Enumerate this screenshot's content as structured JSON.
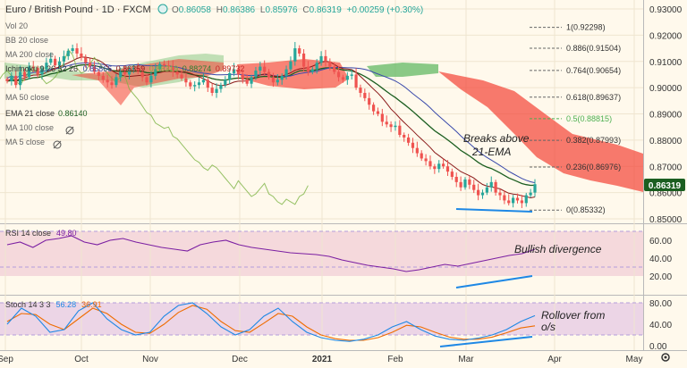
{
  "header": {
    "symbol": "Euro / British Pound",
    "interval": "1D",
    "exchange": "FXCM",
    "ohlc": [
      {
        "label": "O",
        "value": "0.86058"
      },
      {
        "label": "H",
        "value": "0.86386"
      },
      {
        "label": "L",
        "value": "0.85976"
      },
      {
        "label": "C",
        "value": "0.86319"
      }
    ],
    "change": "+0.00259 (+0.30%)"
  },
  "indicators": [
    {
      "id": "vol",
      "text": "Vol 20"
    },
    {
      "id": "bb",
      "text": "BB 20 close"
    },
    {
      "id": "ma200",
      "text": "MA 200 close"
    },
    {
      "id": "ichimoku",
      "text": "Ichimoku 9 26 52 26",
      "values": [
        "0.85866",
        "0.86359",
        "0.86319",
        "0.88274",
        "0.89732"
      ]
    },
    {
      "id": "ma50",
      "text": "MA 50 close"
    },
    {
      "id": "ema21",
      "text": "EMA 21 close",
      "values": [
        "0.86140"
      ]
    },
    {
      "id": "ma100",
      "text": "MA 100 close"
    },
    {
      "id": "ma5",
      "text": "MA 5 close"
    }
  ],
  "price_axis": {
    "ticks": [
      "0.93000",
      "0.92000",
      "0.91000",
      "0.90000",
      "0.89000",
      "0.88000",
      "0.87000",
      "0.86000",
      "0.85000"
    ],
    "current": "0.86319"
  },
  "fib_levels": [
    {
      "ratio": "1",
      "price": "0.92298"
    },
    {
      "ratio": "0.886",
      "price": "0.91504"
    },
    {
      "ratio": "0.764",
      "price": "0.90654"
    },
    {
      "ratio": "0.618",
      "price": "0.89637"
    },
    {
      "ratio": "0.5",
      "price": "0.88815"
    },
    {
      "ratio": "0.382",
      "price": "0.87993"
    },
    {
      "ratio": "0.236",
      "price": "0.86976"
    },
    {
      "ratio": "0",
      "price": "0.85332"
    }
  ],
  "annotations": {
    "ema_break": [
      "Breaks above",
      "21-EMA"
    ],
    "rsi_note": "Bullish divergence",
    "stoch_note": [
      "Rollover from",
      "o/s"
    ]
  },
  "rsi": {
    "label": "RSI 14 close",
    "value": "49.80",
    "ticks": [
      "60.00",
      "40.00",
      "20.00"
    ]
  },
  "stoch": {
    "label": "Stoch 14 3 3",
    "k": "56.28",
    "d": "36.91",
    "ticks": [
      "80.00",
      "40.00",
      "0.00"
    ]
  },
  "time_axis": {
    "labels": [
      "Sep",
      "Oct",
      "Nov",
      "Dec",
      "2021",
      "Feb",
      "Mar",
      "Apr",
      "May"
    ]
  },
  "colors": {
    "background": "#fff9ec",
    "bull": "#26a69a",
    "bear": "#ef5350",
    "cloud_bull": "#4caf50",
    "cloud_bear": "#f44336",
    "ema21": "#1b5e20",
    "kijun": "#8b1a1a",
    "tenkan": "#3949ab",
    "chikou": "#7cb342",
    "rsi_line": "#7b1fa2",
    "stoch_k": "#1e88e5",
    "stoch_d": "#ef6c00",
    "divergence_line": "#1e88e5"
  },
  "chart_data": {
    "type": "candlestick",
    "symbol": "EUR/GBP",
    "candles_close_approx": [
      0.9025,
      0.9045,
      0.901,
      0.906,
      0.904,
      0.908,
      0.9075,
      0.905,
      0.907,
      0.9095,
      0.911,
      0.9085,
      0.91,
      0.912,
      0.914,
      0.915,
      0.913,
      0.9115,
      0.9095,
      0.908,
      0.906,
      0.9045,
      0.903,
      0.902,
      0.901,
      0.904,
      0.906,
      0.905,
      0.907,
      0.9075,
      0.906,
      0.904,
      0.902,
      0.9045,
      0.907,
      0.909,
      0.9085,
      0.908,
      0.906,
      0.905,
      0.9035,
      0.902,
      0.9005,
      0.901,
      0.902,
      0.903,
      0.9,
      0.898,
      0.8995,
      0.901,
      0.903,
      0.9055,
      0.907,
      0.905,
      0.903,
      0.9015,
      0.904,
      0.9065,
      0.908,
      0.906,
      0.904,
      0.902,
      0.903,
      0.9045,
      0.907,
      0.91,
      0.915,
      0.913,
      0.908,
      0.906,
      0.907,
      0.9095,
      0.912,
      0.91,
      0.908,
      0.906,
      0.904,
      0.903,
      0.9045,
      0.905,
      0.9,
      0.898,
      0.896,
      0.8935,
      0.891,
      0.89,
      0.887,
      0.886,
      0.885,
      0.8855,
      0.882,
      0.881,
      0.879,
      0.877,
      0.875,
      0.873,
      0.872,
      0.87,
      0.869,
      0.871,
      0.87,
      0.868,
      0.866,
      0.864,
      0.862,
      0.865,
      0.863,
      0.861,
      0.859,
      0.86,
      0.862,
      0.864,
      0.86,
      0.859,
      0.857,
      0.856,
      0.858,
      0.857,
      0.856,
      0.859,
      0.86,
      0.8632
    ],
    "rsi_values_approx": [
      55,
      58,
      52,
      60,
      62,
      65,
      58,
      55,
      60,
      62,
      58,
      55,
      52,
      50,
      48,
      55,
      58,
      60,
      55,
      52,
      50,
      48,
      46,
      45,
      44,
      42,
      38,
      35,
      32,
      30,
      28,
      25,
      27,
      30,
      33,
      31,
      34,
      37,
      40,
      43,
      45,
      50
    ],
    "stoch_k_approx": [
      40,
      70,
      55,
      25,
      30,
      65,
      80,
      50,
      30,
      20,
      25,
      55,
      75,
      80,
      60,
      35,
      20,
      30,
      55,
      70,
      45,
      25,
      15,
      10,
      8,
      12,
      20,
      35,
      45,
      30,
      18,
      12,
      10,
      14,
      20,
      30,
      45,
      56
    ],
    "stoch_d_approx": [
      45,
      60,
      58,
      40,
      30,
      50,
      70,
      60,
      40,
      25,
      23,
      40,
      62,
      75,
      68,
      45,
      28,
      25,
      42,
      60,
      55,
      35,
      20,
      13,
      10,
      10,
      15,
      25,
      38,
      35,
      25,
      16,
      12,
      12,
      16,
      24,
      33,
      37
    ]
  }
}
